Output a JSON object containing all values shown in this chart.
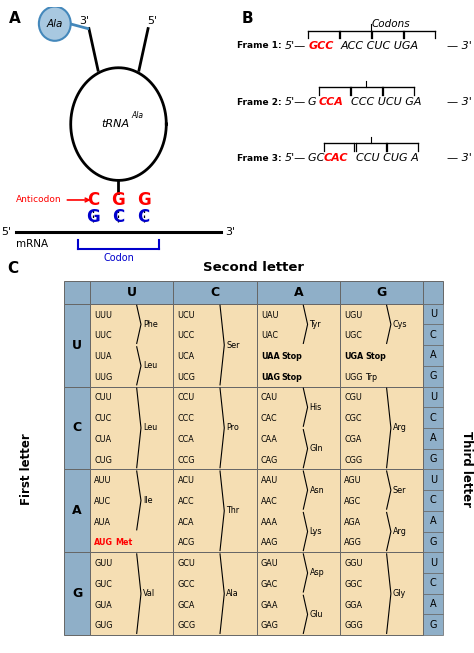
{
  "panel_A": {
    "label": "A",
    "aa_circle_color": "#a8c8e0",
    "aa_circle_edge": "#4488bb",
    "anticodon_color": "#ff0000",
    "codon_color": "#0000cc"
  },
  "panel_B": {
    "label": "B"
  },
  "panel_C": {
    "label": "C",
    "second_letter_title": "Second letter",
    "first_letter_label": "First letter",
    "third_letter_label": "Third letter",
    "second_letters": [
      "U",
      "C",
      "A",
      "G"
    ],
    "first_letters": [
      "U",
      "C",
      "A",
      "G"
    ],
    "third_letters": [
      "U",
      "C",
      "A",
      "G"
    ],
    "header_bg": "#8fafc8",
    "cell_bg": "#f5deb3"
  }
}
